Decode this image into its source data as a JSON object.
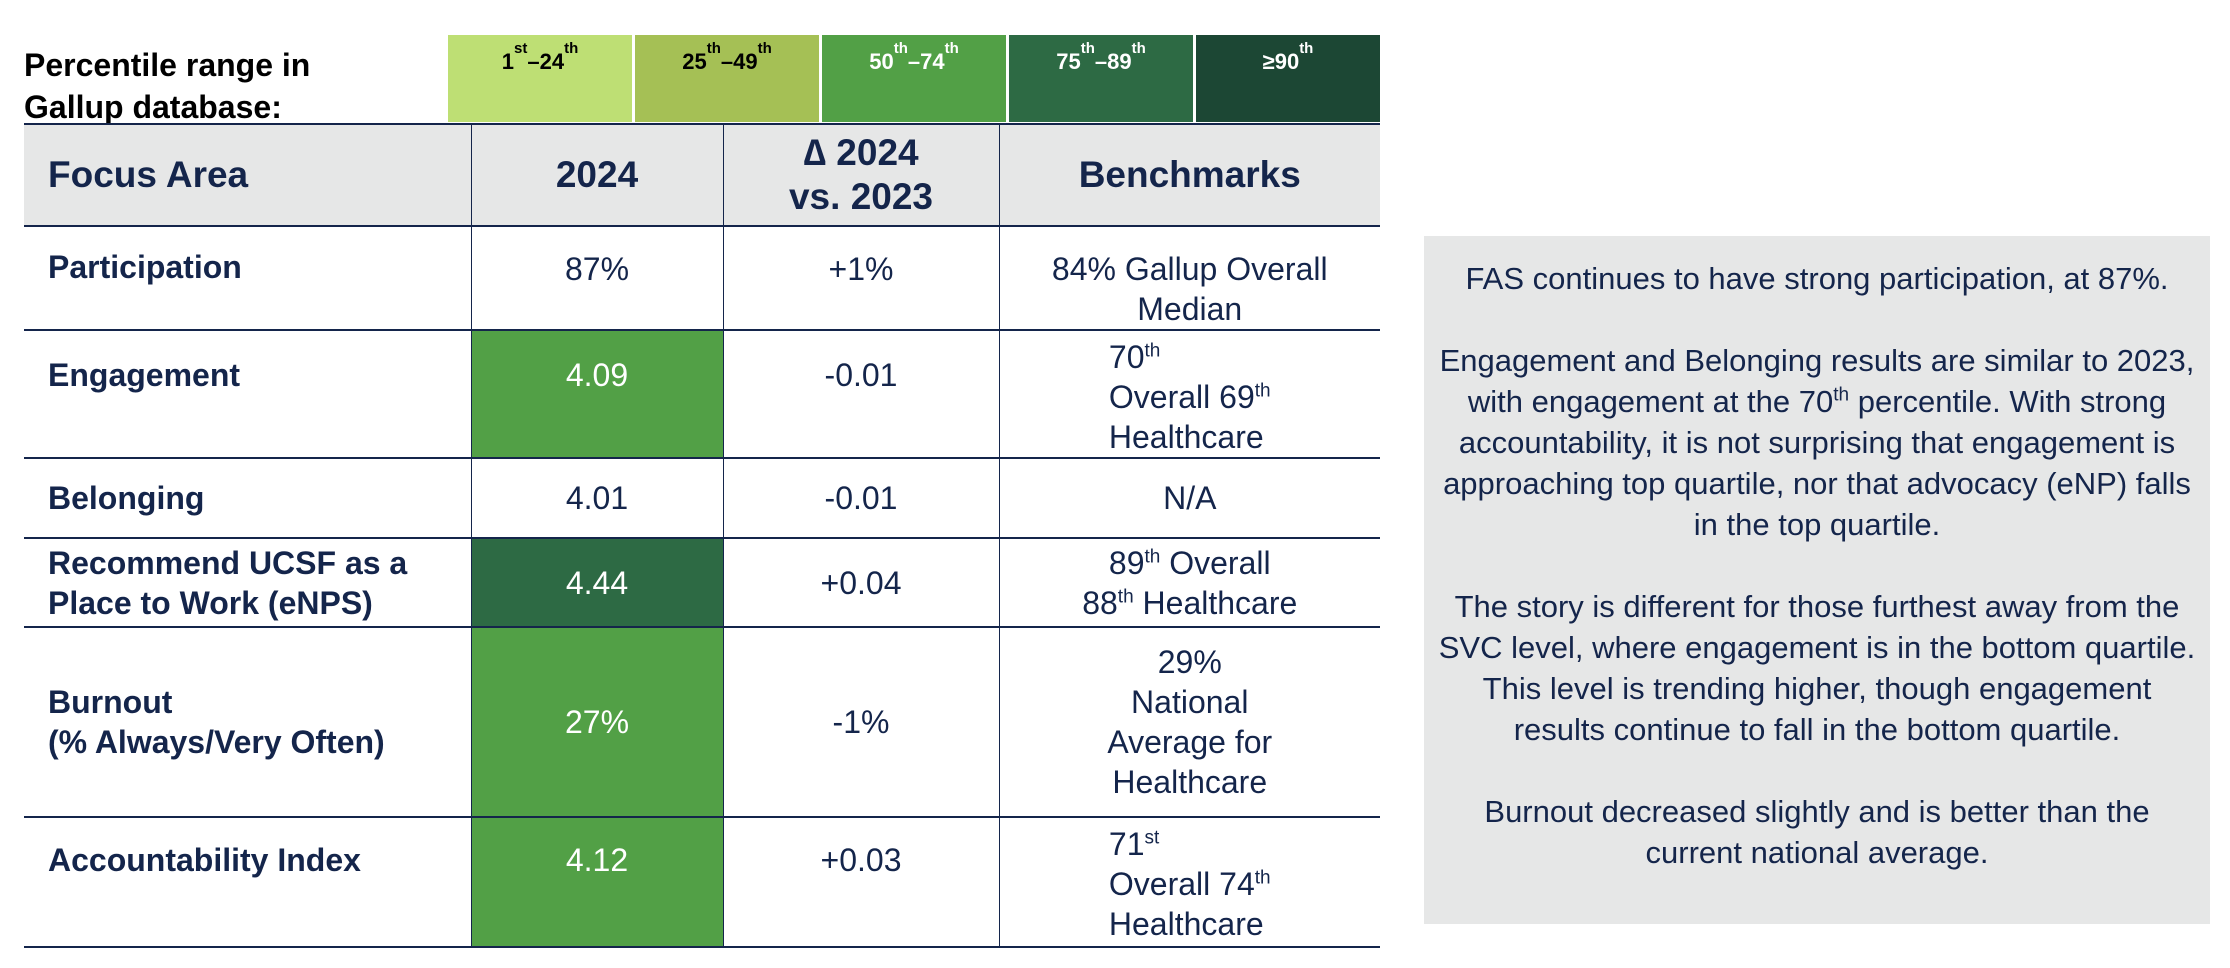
{
  "legend": {
    "title_line1": "Percentile range in",
    "title_line2": "Gallup database:",
    "ranges": [
      {
        "a": "1",
        "a_sup": "st",
        "sep": "–",
        "b": "24",
        "b_sup": "th",
        "color": "#bedf74"
      },
      {
        "a": "25",
        "a_sup": "th",
        "sep": "–",
        "b": "49",
        "b_sup": "th",
        "color": "#a5c055"
      },
      {
        "a": "50",
        "a_sup": "th",
        "sep": "–",
        "b": "74",
        "b_sup": "th",
        "color": "#52a046"
      },
      {
        "a": "75",
        "a_sup": "th",
        "sep": "–",
        "b": "89",
        "b_sup": "th",
        "color": "#2d6a44"
      },
      {
        "a": "≥90",
        "a_sup": "th",
        "sep": "",
        "b": "",
        "b_sup": "",
        "color": "#1c4734"
      }
    ]
  },
  "table": {
    "headers": {
      "focus": "Focus Area",
      "year": "2024",
      "delta_line1": "∆ 2024",
      "delta_line2": "vs. 2023",
      "bench": "Benchmarks"
    },
    "rows": [
      {
        "area_line1": "Participation",
        "area_line2": "",
        "value": "87%",
        "delta": "+1%",
        "bench_line1": "84% Gallup Overall",
        "bench_line2": "Median",
        "bench_line3": "",
        "bench_line4": ""
      },
      {
        "area_line1": "Engagement",
        "area_line2": "",
        "value": "4.09",
        "delta": "-0.01",
        "bench_a": "70",
        "bench_a_sup": "th",
        "bench_b": "Overall 69",
        "bench_b_sup": "th",
        "bench_c": "Healthcare"
      },
      {
        "area_line1": "Belonging",
        "area_line2": "",
        "value": "4.01",
        "delta": "-0.01",
        "bench_line1": "N/A"
      },
      {
        "area_line1": "Recommend UCSF as a",
        "area_line2": "Place to Work (eNPS)",
        "value": "4.44",
        "delta": "+0.04",
        "bench_a": "89",
        "bench_a_sup": "th",
        "bench_a_rest": " Overall",
        "bench_b": "88",
        "bench_b_sup": "th",
        "bench_b_rest": " Healthcare"
      },
      {
        "area_line1": "Burnout",
        "area_line2": "(% Always/Very Often)",
        "value": "27%",
        "delta": "-1%",
        "bench_line1": "29%",
        "bench_line2": "National",
        "bench_line3": "Average for",
        "bench_line4": "Healthcare"
      },
      {
        "area_line1": "Accountability Index",
        "area_line2": "",
        "value": "4.12",
        "delta": "+0.03",
        "bench_a": "71",
        "bench_a_sup": "st",
        "bench_b": "Overall 74",
        "bench_b_sup": "th",
        "bench_c": "Healthcare"
      }
    ]
  },
  "side": {
    "p1": "FAS continues to have strong participation, at 87%.",
    "p2_pre": "Engagement and Belonging results are similar to 2023, with engagement at the 70",
    "p2_sup": "th",
    "p2_post": " percentile. With strong accountability, it is not surprising that engagement is approaching top quartile, nor that advocacy (eNP) falls in the top quartile.",
    "p3": "The story is different for those furthest away from the SVC level, where engagement is in the bottom quartile. This level is trending higher, though engagement results continue to fall in the bottom quartile.",
    "p4": "Burnout decreased slightly and is better than the current national average."
  },
  "colors": {
    "navy": "#14254b",
    "green_50_74": "#52a046",
    "green_75_89": "#2d6a44",
    "header_gray": "#e6e7e7"
  }
}
